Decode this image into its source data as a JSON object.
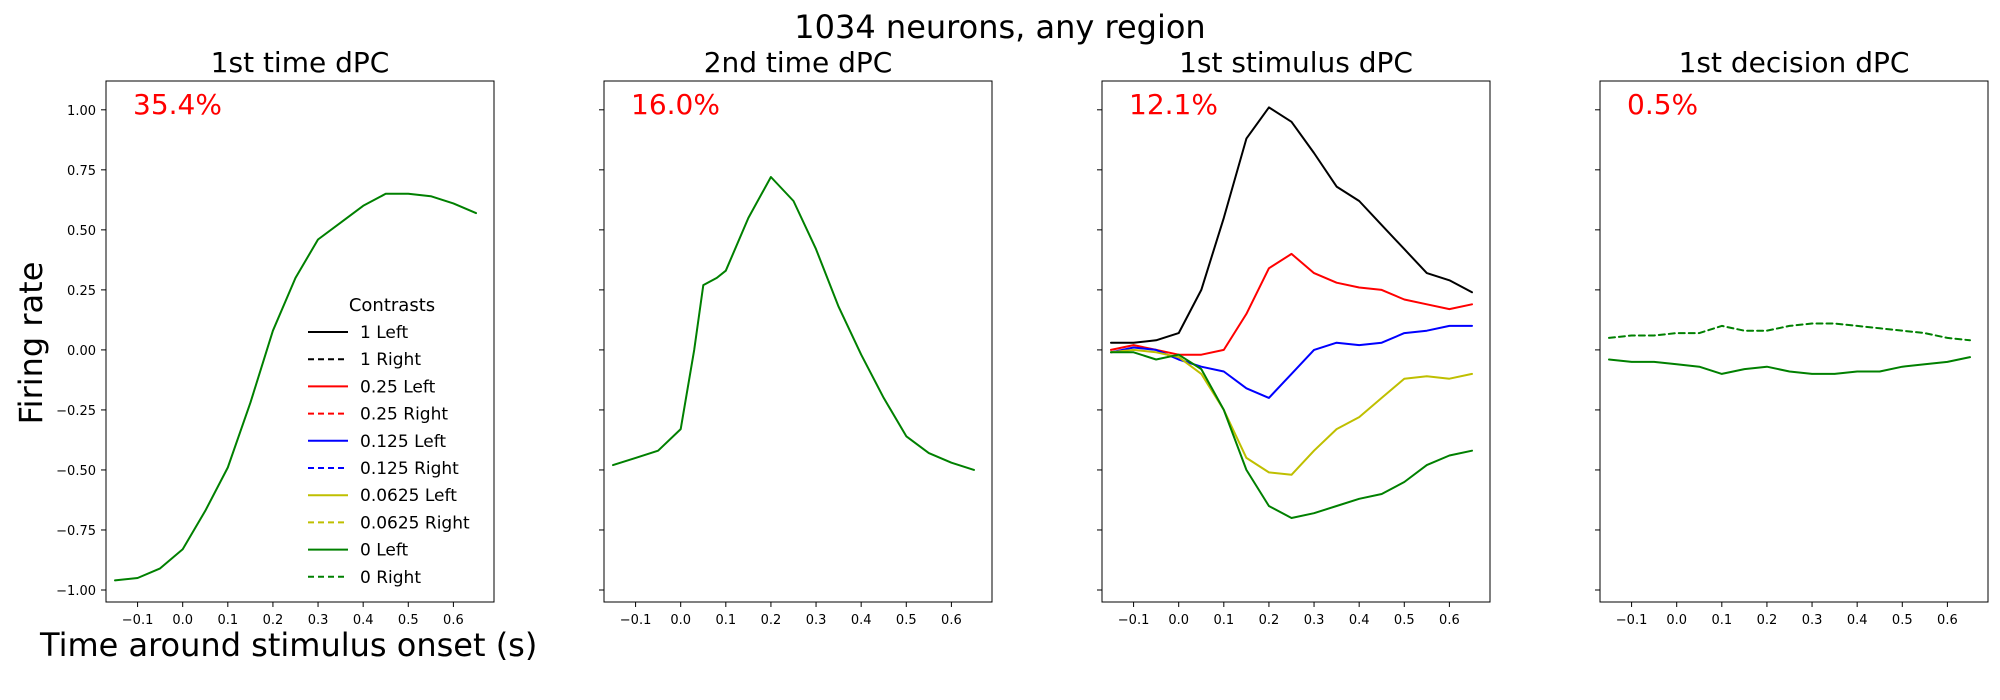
{
  "suptitle": "1034 neurons, any region",
  "ylabel": "Firing rate",
  "xlabel": "Time around stimulus onset (s)",
  "colors": {
    "1": "#000000",
    "0.25": "#ff0000",
    "0.125": "#0000ff",
    "0.0625": "#bfbf00",
    "0": "#008000",
    "pct_text": "#ff0000"
  },
  "legend": {
    "title": "Contrasts",
    "placement": "lower-right of first panel",
    "entries": [
      {
        "label": "1 Left",
        "color": "#000000",
        "dash": "solid"
      },
      {
        "label": "1 Right",
        "color": "#000000",
        "dash": "dashed"
      },
      {
        "label": "0.25 Left",
        "color": "#ff0000",
        "dash": "solid"
      },
      {
        "label": "0.25 Right",
        "color": "#ff0000",
        "dash": "dashed"
      },
      {
        "label": "0.125 Left",
        "color": "#0000ff",
        "dash": "solid"
      },
      {
        "label": "0.125 Right",
        "color": "#0000ff",
        "dash": "dashed"
      },
      {
        "label": "0.0625 Left",
        "color": "#bfbf00",
        "dash": "solid"
      },
      {
        "label": "0.0625 Right",
        "color": "#bfbf00",
        "dash": "dashed"
      },
      {
        "label": "0 Left",
        "color": "#008000",
        "dash": "solid"
      },
      {
        "label": "0 Right",
        "color": "#008000",
        "dash": "dashed"
      }
    ]
  },
  "chart_data": [
    {
      "type": "line",
      "title": "1st time dPC",
      "annotation": "35.4%",
      "xlim": [
        -0.17,
        0.69
      ],
      "ylim": [
        -1.05,
        1.12
      ],
      "xticks": [
        -0.1,
        0.0,
        0.1,
        0.2,
        0.3,
        0.4,
        0.5,
        0.6
      ],
      "xtick_labels": [
        "−0.1",
        "0.0",
        "0.1",
        "0.2",
        "0.3",
        "0.4",
        "0.5",
        "0.6"
      ],
      "yticks": [
        -1.0,
        -0.75,
        -0.5,
        -0.25,
        0.0,
        0.25,
        0.5,
        0.75,
        1.0
      ],
      "ytick_labels": [
        "−1.00",
        "−0.75",
        "−0.50",
        "−0.25",
        "0.00",
        "0.25",
        "0.50",
        "0.75",
        "1.00"
      ],
      "show_ytick_labels": true,
      "series": [
        {
          "color": "#008000",
          "dash": "solid",
          "x": [
            -0.15,
            -0.1,
            -0.05,
            0.0,
            0.05,
            0.1,
            0.15,
            0.2,
            0.25,
            0.3,
            0.35,
            0.4,
            0.45,
            0.5,
            0.55,
            0.6,
            0.65
          ],
          "y": [
            -0.96,
            -0.95,
            -0.91,
            -0.83,
            -0.67,
            -0.49,
            -0.22,
            0.08,
            0.3,
            0.46,
            0.53,
            0.6,
            0.65,
            0.65,
            0.64,
            0.61,
            0.57
          ]
        }
      ]
    },
    {
      "type": "line",
      "title": "2nd time dPC",
      "annotation": "16.0%",
      "xlim": [
        -0.17,
        0.69
      ],
      "ylim": [
        -1.05,
        1.12
      ],
      "xticks": [
        -0.1,
        0.0,
        0.1,
        0.2,
        0.3,
        0.4,
        0.5,
        0.6
      ],
      "xtick_labels": [
        "−0.1",
        "0.0",
        "0.1",
        "0.2",
        "0.3",
        "0.4",
        "0.5",
        "0.6"
      ],
      "yticks": [
        -1.0,
        -0.75,
        -0.5,
        -0.25,
        0.0,
        0.25,
        0.5,
        0.75,
        1.0
      ],
      "show_ytick_labels": false,
      "series": [
        {
          "color": "#008000",
          "dash": "solid",
          "x": [
            -0.15,
            -0.1,
            -0.05,
            0.0,
            0.03,
            0.05,
            0.08,
            0.1,
            0.15,
            0.2,
            0.25,
            0.3,
            0.35,
            0.4,
            0.45,
            0.5,
            0.55,
            0.6,
            0.65
          ],
          "y": [
            -0.48,
            -0.45,
            -0.42,
            -0.33,
            0.0,
            0.27,
            0.3,
            0.33,
            0.55,
            0.72,
            0.62,
            0.42,
            0.18,
            -0.02,
            -0.2,
            -0.36,
            -0.43,
            -0.47,
            -0.5
          ]
        }
      ]
    },
    {
      "type": "line",
      "title": "1st stimulus dPC",
      "annotation": "12.1%",
      "xlim": [
        -0.17,
        0.69
      ],
      "ylim": [
        -1.05,
        1.12
      ],
      "xticks": [
        -0.1,
        0.0,
        0.1,
        0.2,
        0.3,
        0.4,
        0.5,
        0.6
      ],
      "xtick_labels": [
        "−0.1",
        "0.0",
        "0.1",
        "0.2",
        "0.3",
        "0.4",
        "0.5",
        "0.6"
      ],
      "yticks": [
        -1.0,
        -0.75,
        -0.5,
        -0.25,
        0.0,
        0.25,
        0.5,
        0.75,
        1.0
      ],
      "show_ytick_labels": false,
      "series": [
        {
          "name": "1 Left",
          "color": "#000000",
          "dash": "solid",
          "x": [
            -0.15,
            -0.1,
            -0.05,
            0.0,
            0.05,
            0.1,
            0.15,
            0.2,
            0.25,
            0.3,
            0.35,
            0.4,
            0.45,
            0.5,
            0.55,
            0.6,
            0.65
          ],
          "y": [
            0.03,
            0.03,
            0.04,
            0.07,
            0.25,
            0.55,
            0.88,
            1.01,
            0.95,
            0.82,
            0.68,
            0.62,
            0.52,
            0.42,
            0.32,
            0.29,
            0.24
          ]
        },
        {
          "name": "0.25 Left",
          "color": "#ff0000",
          "dash": "solid",
          "x": [
            -0.15,
            -0.1,
            -0.05,
            0.0,
            0.05,
            0.1,
            0.15,
            0.2,
            0.25,
            0.3,
            0.35,
            0.4,
            0.45,
            0.5,
            0.55,
            0.6,
            0.65
          ],
          "y": [
            0.0,
            0.02,
            0.0,
            -0.02,
            -0.02,
            0.0,
            0.15,
            0.34,
            0.4,
            0.32,
            0.28,
            0.26,
            0.25,
            0.21,
            0.19,
            0.17,
            0.19
          ]
        },
        {
          "name": "0.125 Left",
          "color": "#0000ff",
          "dash": "solid",
          "x": [
            -0.15,
            -0.1,
            -0.05,
            0.0,
            0.05,
            0.1,
            0.15,
            0.2,
            0.25,
            0.3,
            0.35,
            0.4,
            0.45,
            0.5,
            0.55,
            0.6,
            0.65
          ],
          "y": [
            -0.01,
            0.01,
            0.0,
            -0.04,
            -0.07,
            -0.09,
            -0.16,
            -0.2,
            -0.1,
            0.0,
            0.03,
            0.02,
            0.03,
            0.07,
            0.08,
            0.1,
            0.1
          ]
        },
        {
          "name": "0.0625 Left",
          "color": "#bfbf00",
          "dash": "solid",
          "x": [
            -0.15,
            -0.1,
            -0.05,
            0.0,
            0.05,
            0.1,
            0.15,
            0.2,
            0.25,
            0.3,
            0.35,
            0.4,
            0.45,
            0.5,
            0.55,
            0.6,
            0.65
          ],
          "y": [
            -0.01,
            0.0,
            -0.01,
            -0.03,
            -0.1,
            -0.25,
            -0.45,
            -0.51,
            -0.52,
            -0.42,
            -0.33,
            -0.28,
            -0.2,
            -0.12,
            -0.11,
            -0.12,
            -0.1
          ]
        },
        {
          "name": "0 Left",
          "color": "#008000",
          "dash": "solid",
          "x": [
            -0.15,
            -0.1,
            -0.05,
            0.0,
            0.05,
            0.1,
            0.15,
            0.2,
            0.25,
            0.3,
            0.35,
            0.4,
            0.45,
            0.5,
            0.55,
            0.6,
            0.65
          ],
          "y": [
            -0.01,
            -0.01,
            -0.04,
            -0.02,
            -0.08,
            -0.25,
            -0.5,
            -0.65,
            -0.7,
            -0.68,
            -0.65,
            -0.62,
            -0.6,
            -0.55,
            -0.48,
            -0.44,
            -0.42
          ]
        }
      ]
    },
    {
      "type": "line",
      "title": "1st decision dPC",
      "annotation": "0.5%",
      "xlim": [
        -0.17,
        0.69
      ],
      "ylim": [
        -1.05,
        1.12
      ],
      "xticks": [
        -0.1,
        0.0,
        0.1,
        0.2,
        0.3,
        0.4,
        0.5,
        0.6
      ],
      "xtick_labels": [
        "−0.1",
        "0.0",
        "0.1",
        "0.2",
        "0.3",
        "0.4",
        "0.5",
        "0.6"
      ],
      "yticks": [
        -1.0,
        -0.75,
        -0.5,
        -0.25,
        0.0,
        0.25,
        0.5,
        0.75,
        1.0
      ],
      "show_ytick_labels": false,
      "series": [
        {
          "name": "0 Right",
          "color": "#008000",
          "dash": "dashed",
          "x": [
            -0.15,
            -0.1,
            -0.05,
            0.0,
            0.05,
            0.1,
            0.15,
            0.2,
            0.25,
            0.3,
            0.35,
            0.4,
            0.45,
            0.5,
            0.55,
            0.6,
            0.65
          ],
          "y": [
            0.05,
            0.06,
            0.06,
            0.07,
            0.07,
            0.1,
            0.08,
            0.08,
            0.1,
            0.11,
            0.11,
            0.1,
            0.09,
            0.08,
            0.07,
            0.05,
            0.04
          ]
        },
        {
          "name": "0 Left",
          "color": "#008000",
          "dash": "solid",
          "x": [
            -0.15,
            -0.1,
            -0.05,
            0.0,
            0.05,
            0.1,
            0.15,
            0.2,
            0.25,
            0.3,
            0.35,
            0.4,
            0.45,
            0.5,
            0.55,
            0.6,
            0.65
          ],
          "y": [
            -0.04,
            -0.05,
            -0.05,
            -0.06,
            -0.07,
            -0.1,
            -0.08,
            -0.07,
            -0.09,
            -0.1,
            -0.1,
            -0.09,
            -0.09,
            -0.07,
            -0.06,
            -0.05,
            -0.03
          ]
        }
      ]
    }
  ]
}
